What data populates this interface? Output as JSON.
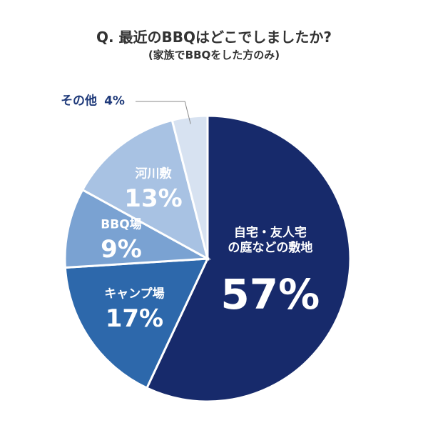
{
  "chart_data": {
    "type": "pie",
    "title": "Q. 最近のBBQはどこでしましたか?",
    "subtitle": "(家族でBBQをした方のみ)",
    "categories": [
      "自宅・友人宅\nの庭などの敷地",
      "キャンプ場",
      "BBQ場",
      "河川敷",
      "その他"
    ],
    "values": [
      57,
      17,
      9,
      13,
      4
    ],
    "value_labels": [
      "57%",
      "17%",
      "9%",
      "13%",
      "4%"
    ],
    "colors": [
      "#172a6b",
      "#2d68ab",
      "#7aa2d2",
      "#a8c2e3",
      "#d7e2f1"
    ]
  }
}
